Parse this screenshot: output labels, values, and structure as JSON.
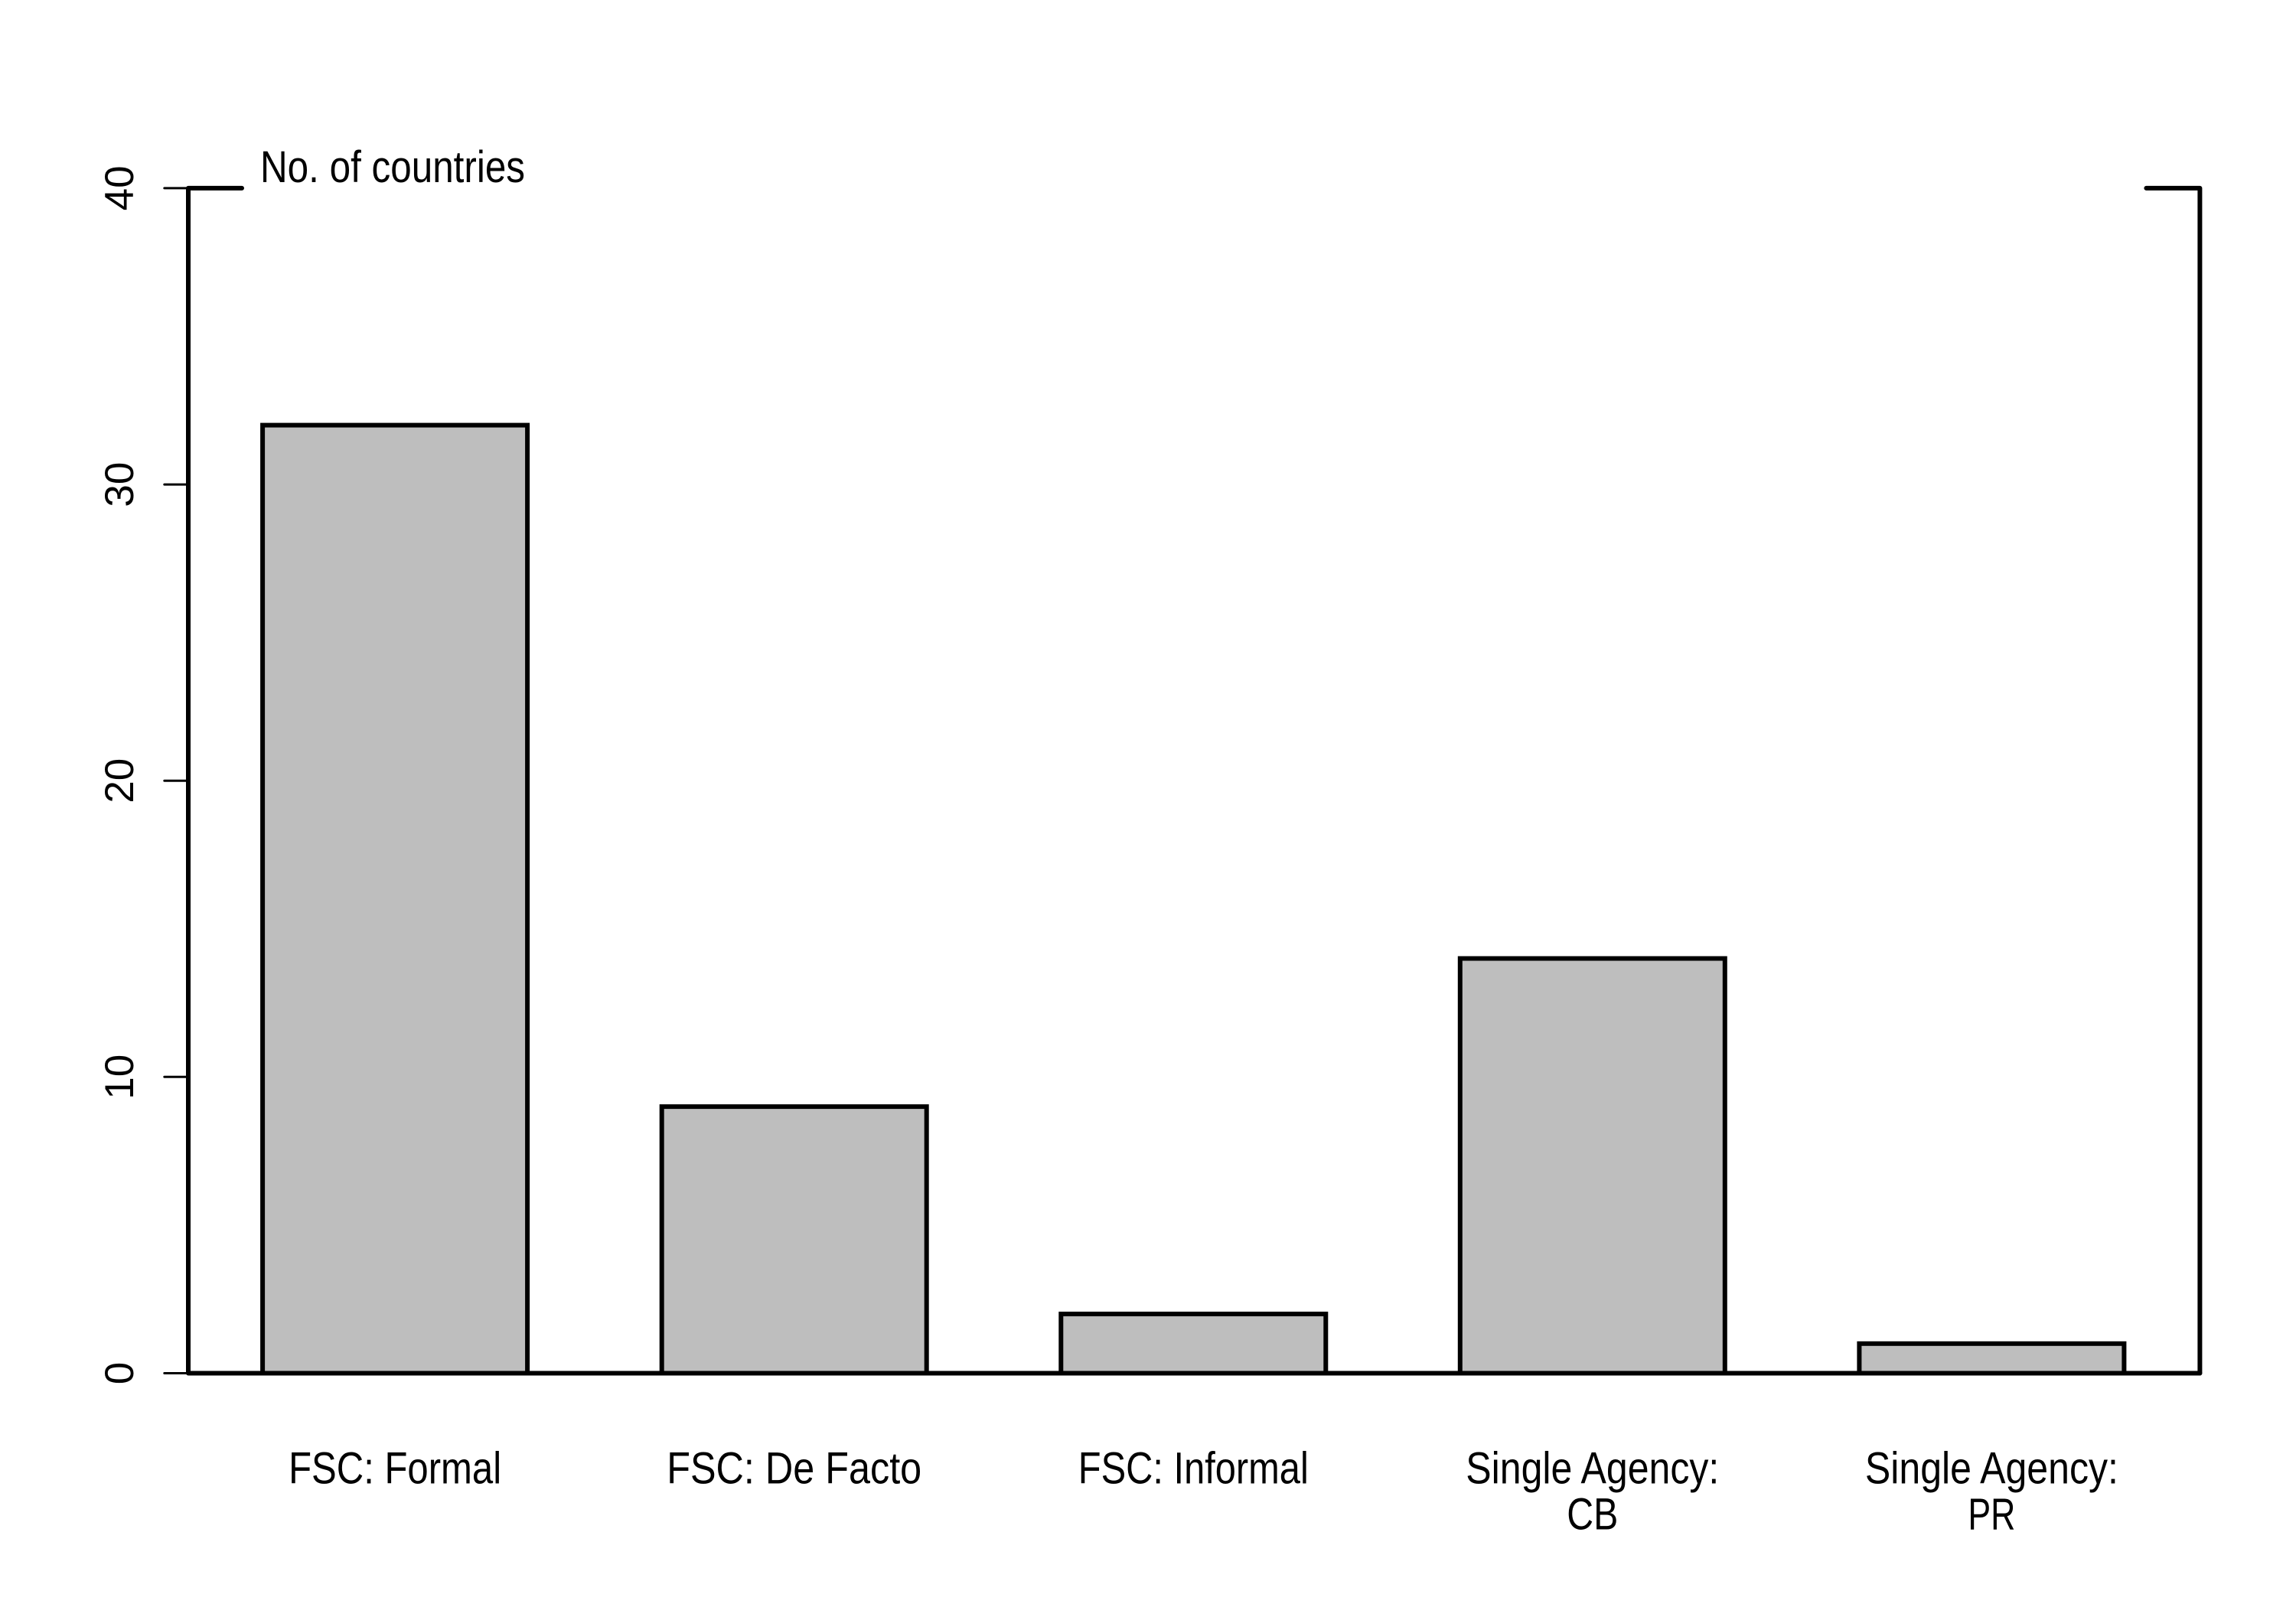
{
  "chart_data": {
    "type": "bar",
    "title": "No. of countries",
    "ylabel": "No. of countries",
    "xlabel": "",
    "categories": [
      "FSC: Formal",
      "FSC: De Facto",
      "FSC: Informal",
      "Single Agency: CB",
      "Single Agency: PR"
    ],
    "category_lines": [
      [
        "FSC: Formal"
      ],
      [
        "FSC: De Facto"
      ],
      [
        "FSC: Informal"
      ],
      [
        "Single Agency:",
        "CB"
      ],
      [
        "Single Agency:",
        "PR"
      ]
    ],
    "values": [
      32,
      9,
      2,
      14,
      1
    ],
    "ylim": [
      0,
      40
    ],
    "yticks": [
      0,
      10,
      20,
      30,
      40
    ],
    "grid": false,
    "legend": null,
    "colors": {
      "bar_fill": "#BEBEBE",
      "bar_stroke": "#000000",
      "axis": "#000000",
      "text": "#000000",
      "background": "#FFFFFF"
    }
  }
}
